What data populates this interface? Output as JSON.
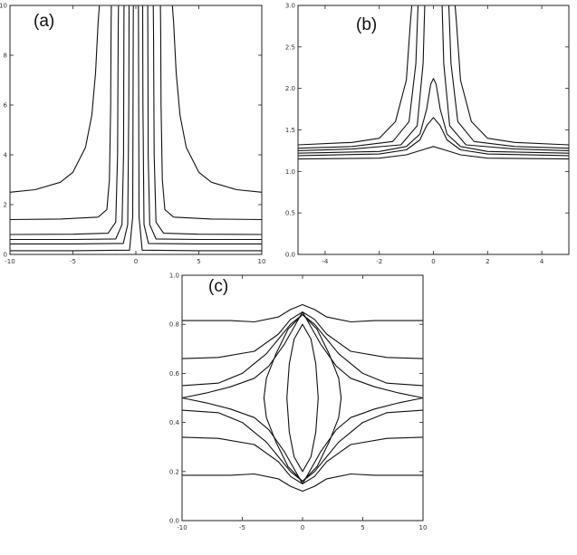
{
  "chart_data": [
    {
      "type": "line",
      "panel_label": "(a)",
      "title": "",
      "xlabel": "",
      "ylabel": "",
      "xlim": [
        -10,
        10
      ],
      "ylim": [
        0,
        10
      ],
      "xticks": [
        -10,
        -5,
        0,
        5,
        10
      ],
      "yticks": [
        0,
        2,
        4,
        6,
        8,
        10
      ],
      "grid": false,
      "legend": "none",
      "series": [
        {
          "x": [
            -10,
            -8,
            -6,
            -5,
            -4,
            -3.5,
            -3.2,
            -3.0,
            -2.9,
            -2.88
          ],
          "y": [
            2.5,
            2.6,
            2.9,
            3.3,
            4.3,
            5.6,
            7.3,
            9.3,
            10,
            10
          ]
        },
        {
          "x": [
            2.88,
            2.9,
            3.0,
            3.2,
            3.5,
            4,
            5,
            6,
            8,
            10
          ],
          "y": [
            10,
            10,
            9.3,
            7.3,
            5.6,
            4.3,
            3.3,
            2.9,
            2.6,
            2.5
          ]
        },
        {
          "x": [
            -10,
            -6,
            -3,
            -2.3,
            -2.1,
            -2.0,
            -1.97,
            -1.95
          ],
          "y": [
            1.4,
            1.42,
            1.5,
            1.8,
            3,
            6,
            9,
            10
          ]
        },
        {
          "x": [
            1.95,
            1.97,
            2.0,
            2.1,
            2.3,
            3,
            6,
            10
          ],
          "y": [
            10,
            9,
            6,
            3,
            1.8,
            1.5,
            1.42,
            1.4
          ]
        },
        {
          "x": [
            -10,
            -5,
            -2.2,
            -1.6,
            -1.45,
            -1.4,
            -1.38
          ],
          "y": [
            0.8,
            0.81,
            0.85,
            1.3,
            4,
            9,
            10
          ]
        },
        {
          "x": [
            1.38,
            1.4,
            1.45,
            1.6,
            2.2,
            5,
            10
          ],
          "y": [
            10,
            9,
            4,
            1.3,
            0.85,
            0.81,
            0.8
          ]
        },
        {
          "x": [
            -10,
            -5,
            -1.6,
            -1.1,
            -0.98,
            -0.95,
            -0.94
          ],
          "y": [
            0.6,
            0.6,
            0.62,
            1.2,
            4,
            9,
            10
          ]
        },
        {
          "x": [
            0.94,
            0.95,
            0.98,
            1.1,
            1.6,
            5,
            10
          ],
          "y": [
            10,
            9,
            4,
            1.2,
            0.62,
            0.6,
            0.6
          ]
        },
        {
          "x": [
            -10,
            -5,
            -1.0,
            -0.65,
            -0.56,
            -0.54
          ],
          "y": [
            0.42,
            0.42,
            0.44,
            1.2,
            6,
            10
          ]
        },
        {
          "x": [
            0.54,
            0.56,
            0.65,
            1.0,
            5,
            10
          ],
          "y": [
            10,
            6,
            1.2,
            0.44,
            0.42,
            0.42
          ]
        },
        {
          "x": [
            -10,
            -5,
            -0.5,
            -0.25,
            -0.2
          ],
          "y": [
            0.15,
            0.15,
            0.17,
            1.5,
            10
          ]
        },
        {
          "x": [
            0.2,
            0.25,
            0.5,
            5,
            10
          ],
          "y": [
            10,
            1.5,
            0.17,
            0.15,
            0.15
          ]
        }
      ]
    },
    {
      "type": "line",
      "panel_label": "(b)",
      "title": "",
      "xlabel": "",
      "ylabel": "",
      "xlim": [
        -5,
        5
      ],
      "ylim": [
        0,
        3
      ],
      "xticks": [
        -4,
        -2,
        0,
        2,
        4
      ],
      "yticks": [
        0.0,
        0.5,
        1.0,
        1.5,
        2.0,
        2.5,
        3.0
      ],
      "grid": false,
      "legend": "none",
      "series": [
        {
          "x": [
            -5,
            -3,
            -2,
            -1.4,
            -1.0,
            -0.85,
            -0.8,
            -0.78
          ],
          "y": [
            1.32,
            1.35,
            1.4,
            1.6,
            2.1,
            2.8,
            3.0,
            3.0
          ]
        },
        {
          "x": [
            0.78,
            0.8,
            0.85,
            1.0,
            1.4,
            2,
            3,
            5
          ],
          "y": [
            3.0,
            3.0,
            2.8,
            2.1,
            1.6,
            1.4,
            1.35,
            1.32
          ]
        },
        {
          "x": [
            -5,
            -3,
            -1.5,
            -0.9,
            -0.65,
            -0.57,
            -0.55
          ],
          "y": [
            1.28,
            1.3,
            1.36,
            1.6,
            2.3,
            3.0,
            3.0
          ]
        },
        {
          "x": [
            0.55,
            0.57,
            0.65,
            0.9,
            1.5,
            3,
            5
          ],
          "y": [
            3.0,
            3.0,
            2.3,
            1.6,
            1.36,
            1.3,
            1.28
          ]
        },
        {
          "x": [
            -5,
            -3,
            -1.2,
            -0.6,
            -0.38,
            -0.32,
            -0.3
          ],
          "y": [
            1.25,
            1.27,
            1.32,
            1.55,
            2.3,
            3.0,
            3.0
          ]
        },
        {
          "x": [
            0.3,
            0.32,
            0.38,
            0.6,
            1.2,
            3,
            5
          ],
          "y": [
            3.0,
            3.0,
            2.3,
            1.55,
            1.32,
            1.27,
            1.25
          ]
        },
        {
          "x": [
            -5,
            -2,
            -1,
            -0.5,
            -0.25,
            -0.1,
            0,
            0.1,
            0.25,
            0.5,
            1,
            2,
            5
          ],
          "y": [
            1.22,
            1.24,
            1.3,
            1.45,
            1.75,
            2.05,
            2.12,
            2.05,
            1.75,
            1.45,
            1.3,
            1.24,
            1.22
          ]
        },
        {
          "x": [
            -5,
            -2,
            -1,
            -0.5,
            -0.25,
            0,
            0.25,
            0.5,
            1,
            2,
            5
          ],
          "y": [
            1.19,
            1.21,
            1.26,
            1.38,
            1.55,
            1.65,
            1.55,
            1.38,
            1.26,
            1.21,
            1.19
          ]
        },
        {
          "x": [
            -5,
            -2,
            -1,
            -0.5,
            0,
            0.5,
            1,
            2,
            5
          ],
          "y": [
            1.15,
            1.16,
            1.2,
            1.25,
            1.3,
            1.25,
            1.2,
            1.16,
            1.15
          ]
        }
      ]
    },
    {
      "type": "line",
      "panel_label": "(c)",
      "title": "",
      "xlabel": "",
      "ylabel": "",
      "xlim": [
        -10,
        10
      ],
      "ylim": [
        0,
        1
      ],
      "xticks": [
        -10,
        -5,
        0,
        5,
        10
      ],
      "yticks": [
        0.0,
        0.2,
        0.4,
        0.6,
        0.8,
        1.0
      ],
      "grid": false,
      "legend": "none",
      "series": [
        {
          "x": [
            -10,
            -6,
            -4,
            -2,
            -1,
            0,
            1,
            2,
            4,
            6,
            10
          ],
          "y": [
            0.815,
            0.815,
            0.81,
            0.83,
            0.86,
            0.88,
            0.86,
            0.83,
            0.81,
            0.815,
            0.815
          ]
        },
        {
          "x": [
            -10,
            -6,
            -4,
            -2,
            -1,
            0,
            1,
            2,
            4,
            6,
            10
          ],
          "y": [
            0.185,
            0.185,
            0.19,
            0.17,
            0.14,
            0.12,
            0.14,
            0.17,
            0.19,
            0.185,
            0.185
          ]
        },
        {
          "x": [
            -10,
            -7,
            -4,
            -2,
            -1,
            0,
            1,
            2,
            4,
            7,
            10
          ],
          "y": [
            0.66,
            0.665,
            0.69,
            0.76,
            0.82,
            0.85,
            0.82,
            0.76,
            0.69,
            0.665,
            0.66
          ]
        },
        {
          "x": [
            -10,
            -7,
            -4,
            -2,
            -1,
            0,
            1,
            2,
            4,
            7,
            10
          ],
          "y": [
            0.34,
            0.335,
            0.31,
            0.24,
            0.18,
            0.15,
            0.18,
            0.24,
            0.31,
            0.335,
            0.34
          ]
        },
        {
          "x": [
            -10,
            -7,
            -5,
            -3,
            -2,
            -1,
            0,
            1,
            2,
            3,
            5,
            7,
            10
          ],
          "y": [
            0.55,
            0.56,
            0.6,
            0.68,
            0.74,
            0.8,
            0.84,
            0.8,
            0.74,
            0.68,
            0.6,
            0.56,
            0.55
          ]
        },
        {
          "x": [
            -10,
            -7,
            -5,
            -3,
            -2,
            -1,
            0,
            1,
            2,
            3,
            5,
            7,
            10
          ],
          "y": [
            0.45,
            0.44,
            0.4,
            0.32,
            0.26,
            0.2,
            0.16,
            0.2,
            0.26,
            0.32,
            0.4,
            0.44,
            0.45
          ]
        },
        {
          "x": [
            -10,
            -8,
            -6,
            -4,
            -2.8,
            -1.5,
            0,
            1.5,
            2.8,
            4,
            6,
            8,
            10,
            8,
            6,
            4,
            2.8,
            1.5,
            0,
            -1.5,
            -2.8,
            -4,
            -6,
            -8,
            -10
          ],
          "y": [
            0.5,
            0.52,
            0.545,
            0.58,
            0.63,
            0.72,
            0.85,
            0.72,
            0.63,
            0.58,
            0.545,
            0.52,
            0.5,
            0.48,
            0.455,
            0.42,
            0.37,
            0.28,
            0.15,
            0.28,
            0.37,
            0.42,
            0.455,
            0.48,
            0.5
          ]
        },
        {
          "x": [
            0,
            1.2,
            2.2,
            3.0,
            3.2,
            3.0,
            2.2,
            1.2,
            0,
            -1.2,
            -2.2,
            -3.0,
            -3.2,
            -3.0,
            -2.2,
            -1.2,
            0
          ],
          "y": [
            0.84,
            0.78,
            0.68,
            0.58,
            0.5,
            0.42,
            0.32,
            0.22,
            0.16,
            0.22,
            0.32,
            0.42,
            0.5,
            0.58,
            0.68,
            0.78,
            0.84
          ]
        },
        {
          "x": [
            0,
            0.7,
            1.1,
            1.3,
            1.1,
            0.7,
            0,
            -0.7,
            -1.1,
            -1.3,
            -1.1,
            -0.7,
            0
          ],
          "y": [
            0.8,
            0.74,
            0.64,
            0.5,
            0.36,
            0.26,
            0.2,
            0.26,
            0.36,
            0.5,
            0.64,
            0.74,
            0.8
          ]
        }
      ]
    }
  ]
}
